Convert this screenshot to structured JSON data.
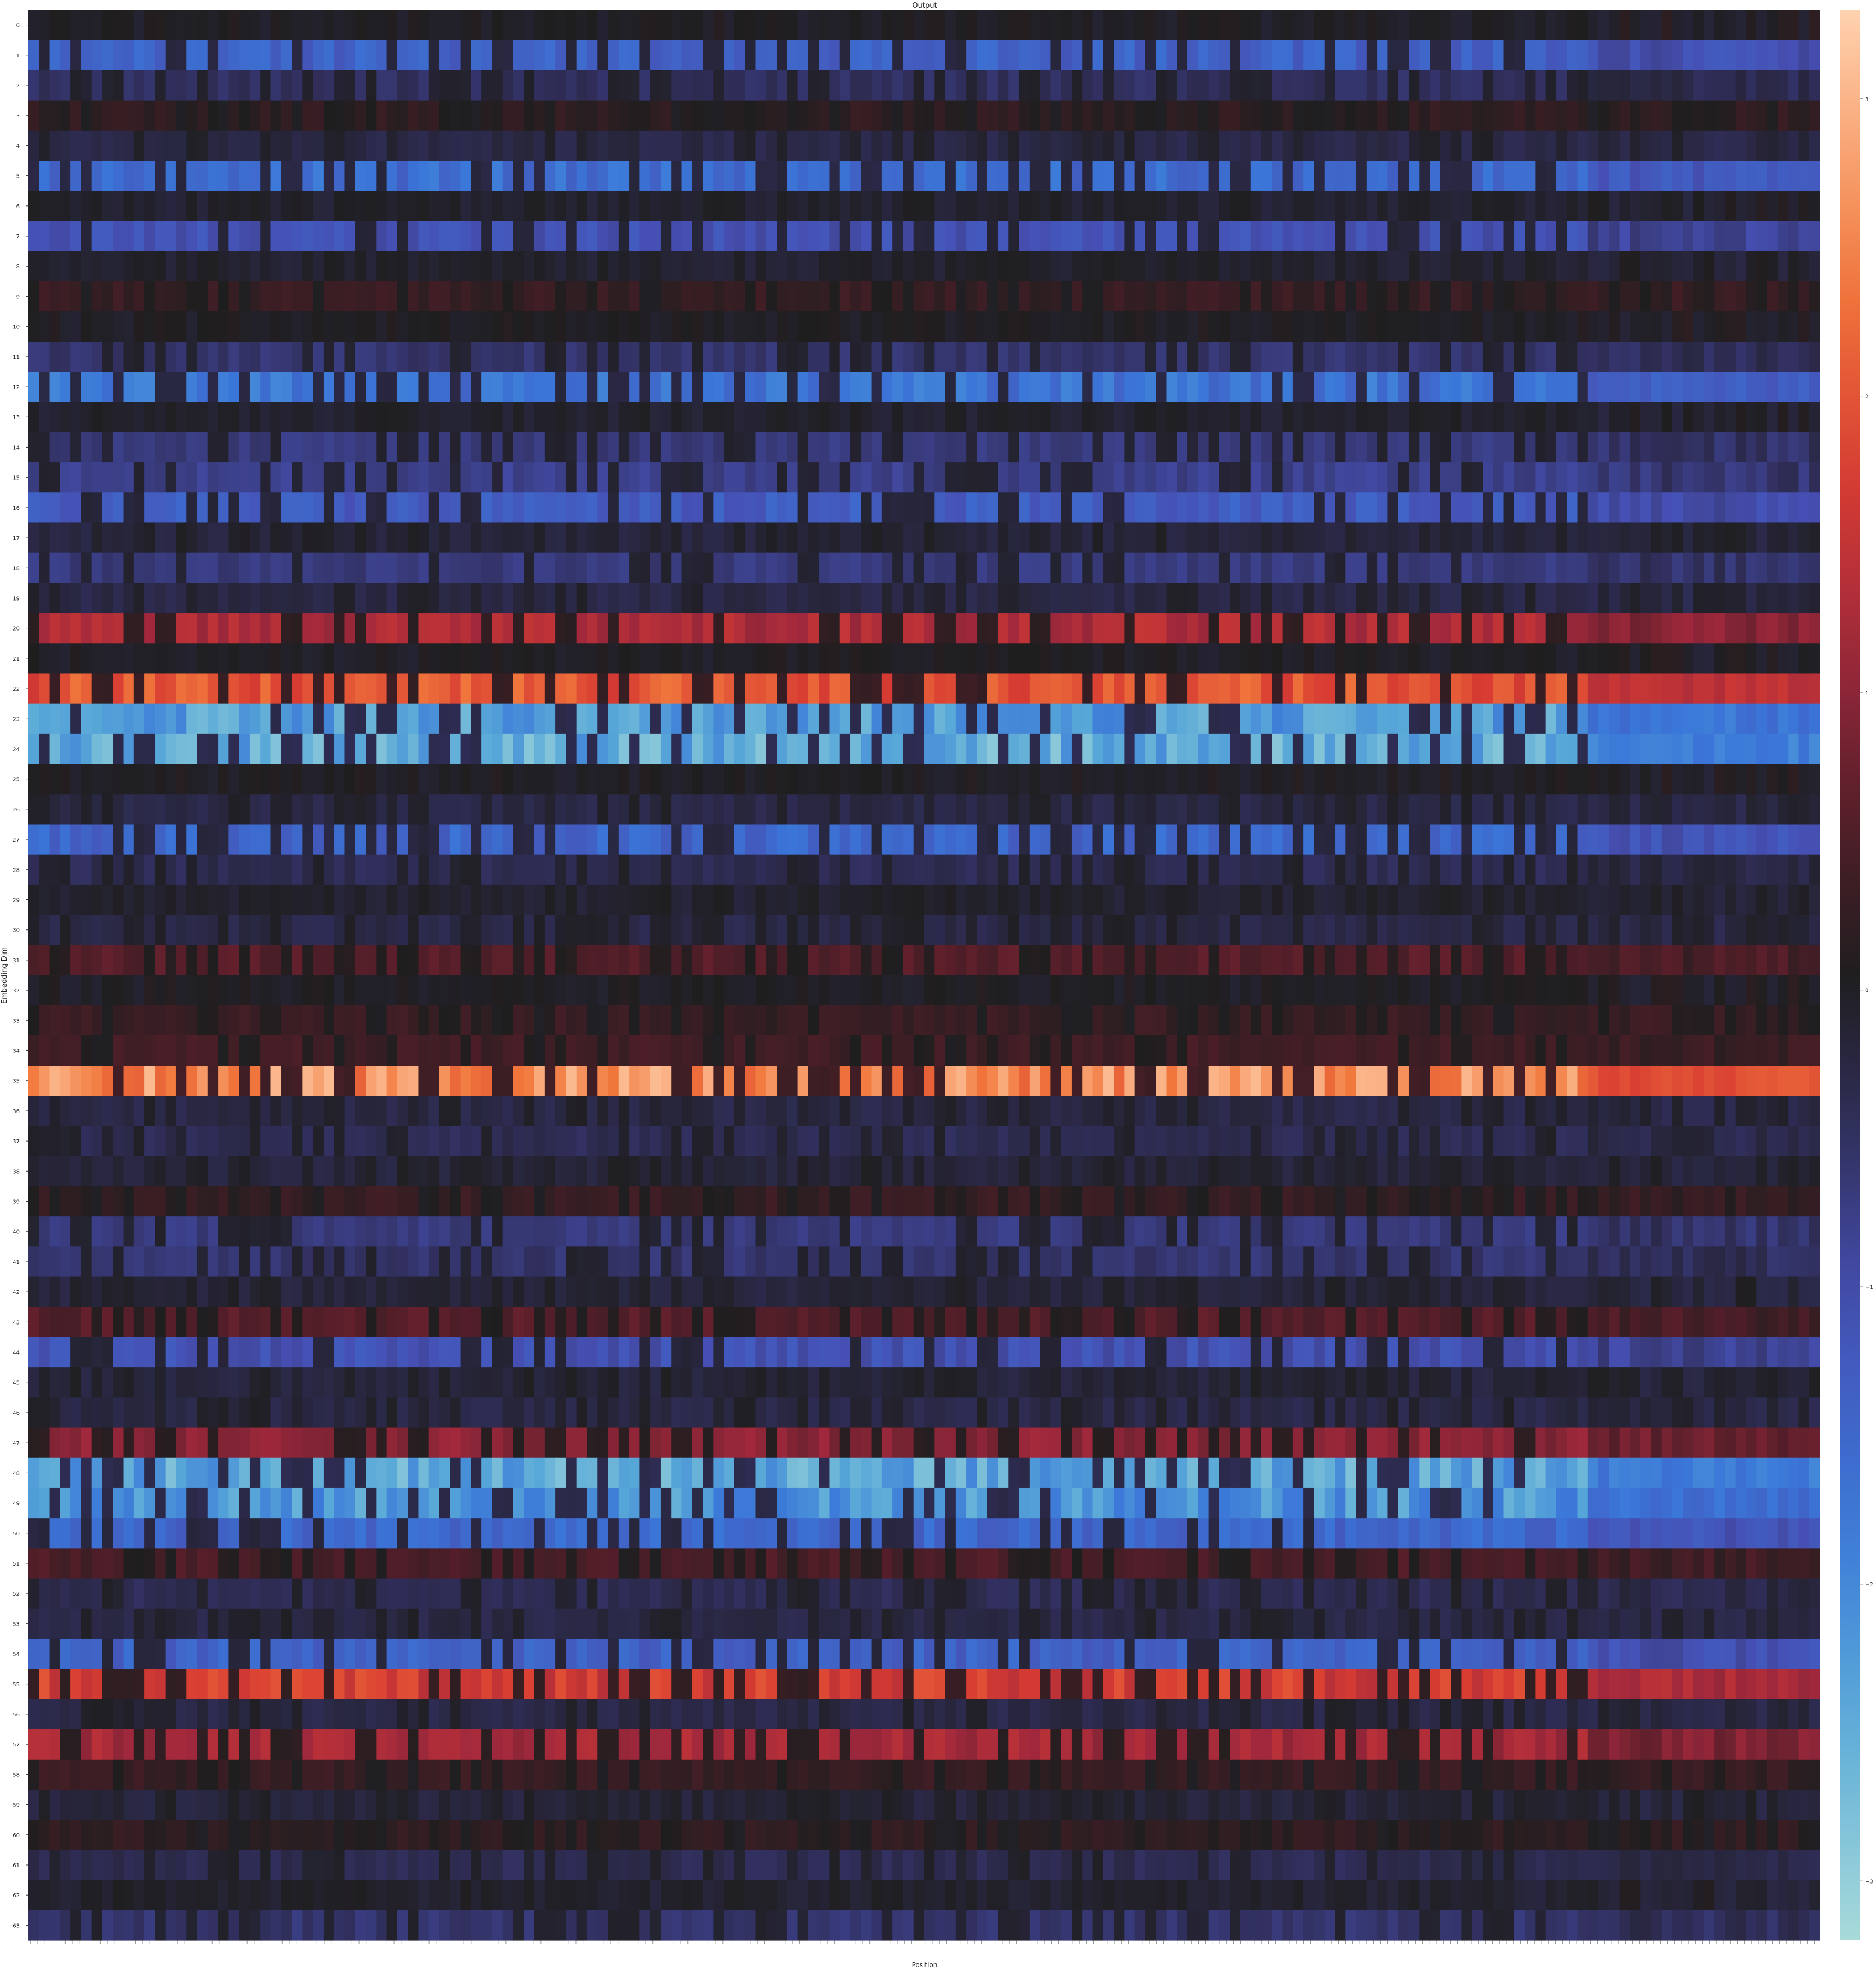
{
  "chart_data": {
    "type": "heatmap",
    "title": "Output",
    "xlabel": "Position",
    "ylabel": "Embedding Dim",
    "y_tick_labels": [
      "0",
      "1",
      "2",
      "3",
      "4",
      "5",
      "6",
      "7",
      "8",
      "9",
      "10",
      "11",
      "12",
      "13",
      "14",
      "15",
      "16",
      "17",
      "18",
      "19",
      "20",
      "21",
      "22",
      "23",
      "24",
      "25",
      "26",
      "27",
      "28",
      "29",
      "30",
      "31",
      "32",
      "33",
      "34",
      "35",
      "36",
      "37",
      "38",
      "39",
      "40",
      "41",
      "42",
      "43",
      "44",
      "45",
      "46",
      "47",
      "48",
      "49",
      "50",
      "51",
      "52",
      "53",
      "54",
      "55",
      "56",
      "57",
      "58",
      "59",
      "60",
      "61",
      "62",
      "63"
    ],
    "colorbar": {
      "colormap": "icefire",
      "vmin": -3.2,
      "vmax": 3.3,
      "tick_labels": [
        "3",
        "2",
        "1",
        "0",
        "−1",
        "−2",
        "−3"
      ],
      "tick_values": [
        3,
        2,
        1,
        0,
        -1,
        -2,
        -3
      ]
    },
    "grid": false,
    "n_positions_approx": 512,
    "row_mean_values": [
      0.0,
      -1.4,
      -0.5,
      0.2,
      -0.3,
      -1.6,
      -0.1,
      -1.1,
      -0.1,
      0.3,
      0.0,
      -0.6,
      -1.7,
      -0.1,
      -0.7,
      -0.8,
      -1.3,
      -0.2,
      -0.7,
      -0.3,
      1.3,
      0.0,
      2.0,
      -2.3,
      -2.5,
      0.0,
      -0.3,
      -1.5,
      -0.4,
      -0.1,
      -0.3,
      0.6,
      0.0,
      0.3,
      0.4,
      2.6,
      -0.3,
      -0.4,
      -0.2,
      0.3,
      -0.7,
      -0.6,
      -0.2,
      0.6,
      -1.1,
      -0.2,
      -0.3,
      1.0,
      -2.4,
      -2.2,
      -1.5,
      0.5,
      -0.4,
      -0.3,
      -1.4,
      1.7,
      -0.3,
      1.2,
      0.3,
      -0.2,
      0.2,
      -0.4,
      -0.1,
      -0.6
    ]
  }
}
